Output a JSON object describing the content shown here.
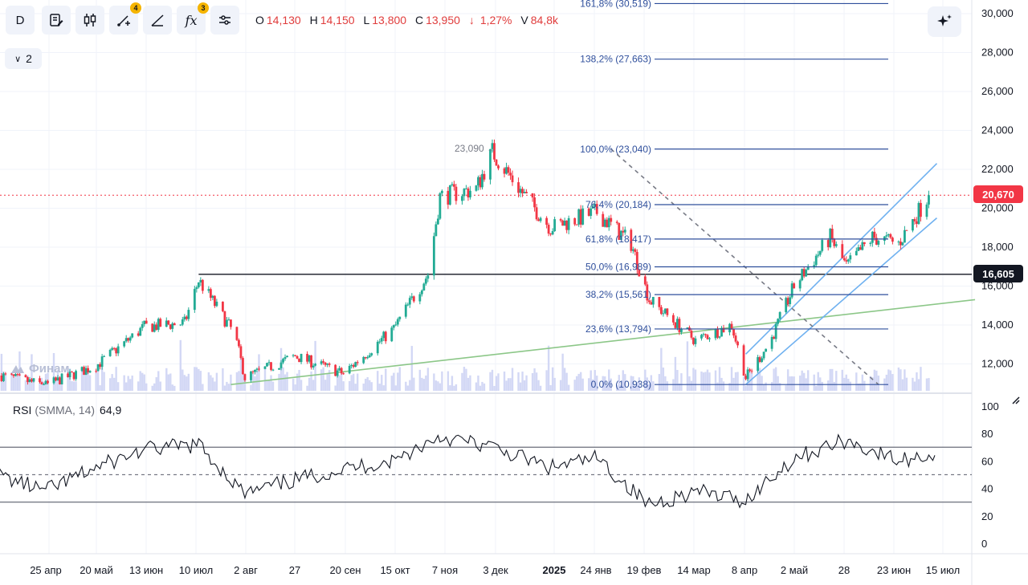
{
  "toolbar": {
    "interval_label": "D",
    "drawings_badge": "4",
    "indicators_badge": "3",
    "indicators_glyph": "fx"
  },
  "ohlc": {
    "open_label": "O",
    "open": "14,130",
    "high_label": "H",
    "high": "14,150",
    "low_label": "L",
    "low": "13,800",
    "close_label": "C",
    "close": "13,950",
    "change_arrow": "↓",
    "change_pct": "1,27%",
    "volume_label": "V",
    "volume": "84,8k",
    "down_color": "#e03c3c"
  },
  "panels": {
    "collapse_label": "2"
  },
  "watermark": "Финам",
  "rsi_legend": {
    "name": "RSI",
    "params": "(SMMA, 14)",
    "value": "64,9"
  },
  "price_axis": {
    "ticks": [
      "30,000",
      "28,000",
      "26,000",
      "24,000",
      "22,000",
      "20,000",
      "18,000",
      "16,000",
      "14,000",
      "12,000"
    ],
    "rsi_ticks": [
      "100",
      "80",
      "60",
      "40",
      "20",
      "0"
    ]
  },
  "tags": {
    "last_price": "20,670",
    "last_color": "#f23645",
    "hline_price": "16,605",
    "hline_color": "#131722"
  },
  "time_axis": [
    "25 апр",
    "20 май",
    "13 июн",
    "10 июл",
    "2 авг",
    "27",
    "20 сен",
    "15 окт",
    "7 ноя",
    "3 дек",
    "2025",
    "24 янв",
    "19 фев",
    "14 мар",
    "8 апр",
    "2 май",
    "28",
    "23 июн",
    "15 июл"
  ],
  "fib_levels": [
    {
      "label": "161,8% (30,519)",
      "value": 30519
    },
    {
      "label": "138,2% (27,663)",
      "value": 27663
    },
    {
      "label": "100,0% (23,040)",
      "value": 23040
    },
    {
      "label": "76,4% (20,184)",
      "value": 20184
    },
    {
      "label": "61,8% (18,417)",
      "value": 18417
    },
    {
      "label": "50,0% (16,989)",
      "value": 16989
    },
    {
      "label": "38,2% (15,561)",
      "value": 15561
    },
    {
      "label": "23,6% (13,794)",
      "value": 13794
    },
    {
      "label": "0,0% (10,938)",
      "value": 10938
    }
  ],
  "annotation": {
    "label": "23,090",
    "value": 23090
  },
  "chart_data": [
    {
      "type": "candlestick",
      "title": "",
      "y_range": [
        10500,
        30700
      ],
      "x_range": [
        "2024-04-01",
        "2025-07-25"
      ],
      "x": [
        "2024-04-03",
        "2024-04-25",
        "2024-05-20",
        "2024-06-13",
        "2024-07-03",
        "2024-07-10",
        "2024-07-28",
        "2024-08-02",
        "2024-08-27",
        "2024-09-20",
        "2024-10-15",
        "2024-11-01",
        "2024-11-07",
        "2024-11-25",
        "2024-12-03",
        "2024-12-20",
        "2025-01-01",
        "2025-01-24",
        "2025-02-10",
        "2025-02-19",
        "2025-03-14",
        "2025-04-01",
        "2025-04-08",
        "2025-04-20",
        "2025-05-02",
        "2025-05-20",
        "2025-05-28",
        "2025-06-10",
        "2025-06-23",
        "2025-07-08"
      ],
      "close": [
        11400,
        10900,
        11900,
        13900,
        14100,
        16300,
        13500,
        11300,
        12400,
        11500,
        13800,
        16600,
        20600,
        21000,
        22900,
        20500,
        19000,
        19800,
        18200,
        15300,
        13200,
        14000,
        11300,
        13100,
        16000,
        18500,
        17000,
        18500,
        18200,
        20670
      ],
      "hlines": [
        {
          "value": 16605,
          "from": "2024-07-10"
        }
      ],
      "trend_lines": [
        {
          "name": "",
          "points": [
            [
              "2024-07-26",
              10938
            ],
            [
              "2025-07-31",
              15300
            ]
          ]
        },
        {
          "name": "",
          "points": [
            [
              "2025-04-08",
              10938
            ],
            [
              "2025-07-12",
              19500
            ]
          ]
        },
        {
          "name": "",
          "points": [
            [
              "2025-04-08",
              12500
            ],
            [
              "2025-07-12",
              22300
            ]
          ]
        },
        {
          "name": "",
          "points": [
            [
              "2025-01-31",
              23040
            ],
            [
              "2025-06-13",
              10938
            ]
          ]
        }
      ],
      "volume_shown": true,
      "grid": true,
      "legend": "none"
    },
    {
      "type": "line",
      "title": "",
      "name": "RSI (SMMA, 14)",
      "y_range": [
        0,
        100
      ],
      "bands": [
        30,
        50,
        70
      ],
      "x": [
        "2024-04-01",
        "2024-04-25",
        "2024-05-20",
        "2024-06-13",
        "2024-07-10",
        "2024-08-02",
        "2024-08-27",
        "2024-09-20",
        "2024-10-15",
        "2024-11-07",
        "2024-12-03",
        "2025-01-01",
        "2025-01-24",
        "2025-02-19",
        "2025-03-14",
        "2025-04-08",
        "2025-05-02",
        "2025-05-28",
        "2025-06-23",
        "2025-07-12"
      ],
      "values": [
        50,
        38,
        55,
        68,
        72,
        36,
        46,
        54,
        60,
        78,
        70,
        55,
        62,
        28,
        38,
        31,
        62,
        75,
        60,
        65
      ],
      "last_value": 64.9,
      "grid": true,
      "legend": "top-left"
    }
  ]
}
